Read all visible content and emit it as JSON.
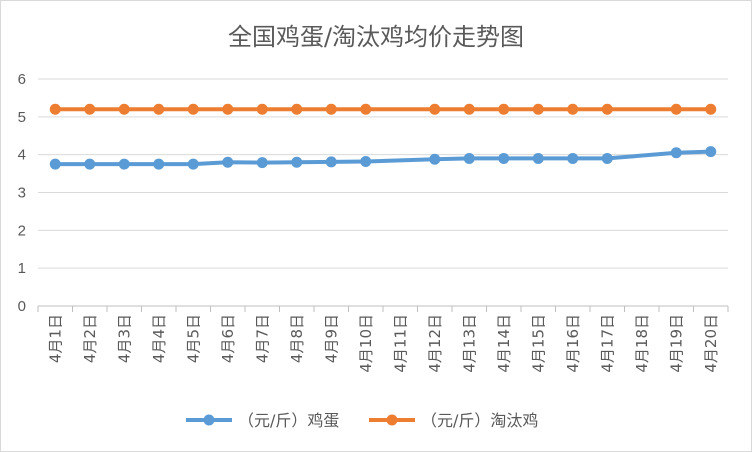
{
  "chart_data": {
    "type": "line",
    "title": "全国鸡蛋/淘汰鸡均价走势图",
    "xlabel": "",
    "ylabel": "",
    "ylim": [
      0,
      6
    ],
    "yticks": [
      "0",
      "1",
      "2",
      "3",
      "4",
      "5",
      "6"
    ],
    "grid": true,
    "legend_position": "bottom",
    "categories": [
      "4月1日",
      "4月2日",
      "4月3日",
      "4月4日",
      "4月5日",
      "4月6日",
      "4月7日",
      "4月8日",
      "4月9日",
      "4月10日",
      "4月11日",
      "4月12日",
      "4月13日",
      "4月14日",
      "4月15日",
      "4月16日",
      "4月17日",
      "4月18日",
      "4月19日",
      "4月20日"
    ],
    "series": [
      {
        "name": "（元/斤）鸡蛋",
        "color": "#5b9bd5",
        "values": [
          3.75,
          3.75,
          3.75,
          3.75,
          3.75,
          3.8,
          3.79,
          3.8,
          3.81,
          3.82,
          null,
          3.88,
          3.9,
          3.9,
          3.9,
          3.9,
          3.9,
          null,
          4.05,
          4.08
        ]
      },
      {
        "name": "（元/斤）淘汰鸡",
        "color": "#ed7d31",
        "values": [
          5.2,
          5.2,
          5.2,
          5.2,
          5.2,
          5.2,
          5.2,
          5.2,
          5.2,
          5.2,
          null,
          5.2,
          5.2,
          5.2,
          5.2,
          5.2,
          5.2,
          null,
          5.2,
          5.2
        ]
      }
    ]
  }
}
